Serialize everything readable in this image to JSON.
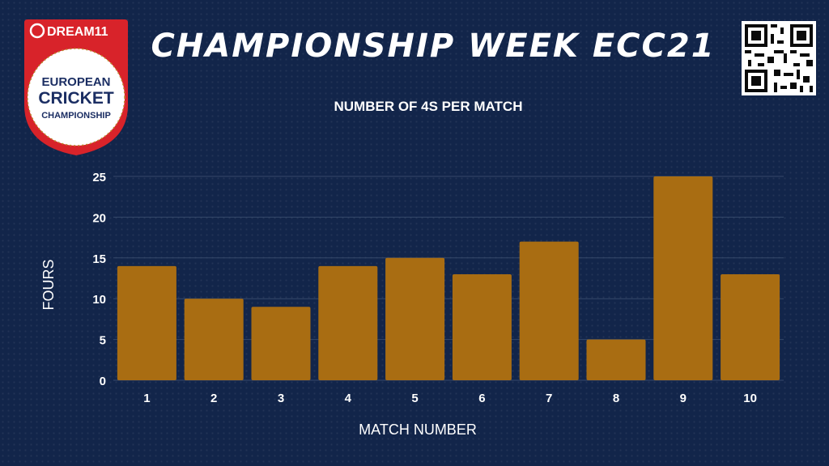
{
  "header": {
    "title": "CHAMPIONSHIP WEEK ECC21",
    "logo": {
      "sponsor": "DREAM11",
      "line1": "EUROPEAN",
      "line2": "CRICKET",
      "line3": "CHAMPIONSHIP"
    },
    "qr_icon": "qr-code-icon"
  },
  "colors": {
    "background": "#12254a",
    "bar": "#a96d12",
    "text": "#ffffff",
    "grid": "#35486b",
    "logo_red": "#d8232a"
  },
  "chart_data": {
    "type": "bar",
    "title": "NUMBER OF 4S PER MATCH",
    "xlabel": "MATCH NUMBER",
    "ylabel": "FOURS",
    "categories": [
      "1",
      "2",
      "3",
      "4",
      "5",
      "6",
      "7",
      "8",
      "9",
      "10"
    ],
    "values": [
      14,
      10,
      9,
      14,
      15,
      13,
      17,
      5,
      25,
      13
    ],
    "ylim": [
      0,
      25
    ],
    "yticks": [
      "0",
      "5",
      "10",
      "15",
      "20",
      "25"
    ],
    "grid": true
  }
}
